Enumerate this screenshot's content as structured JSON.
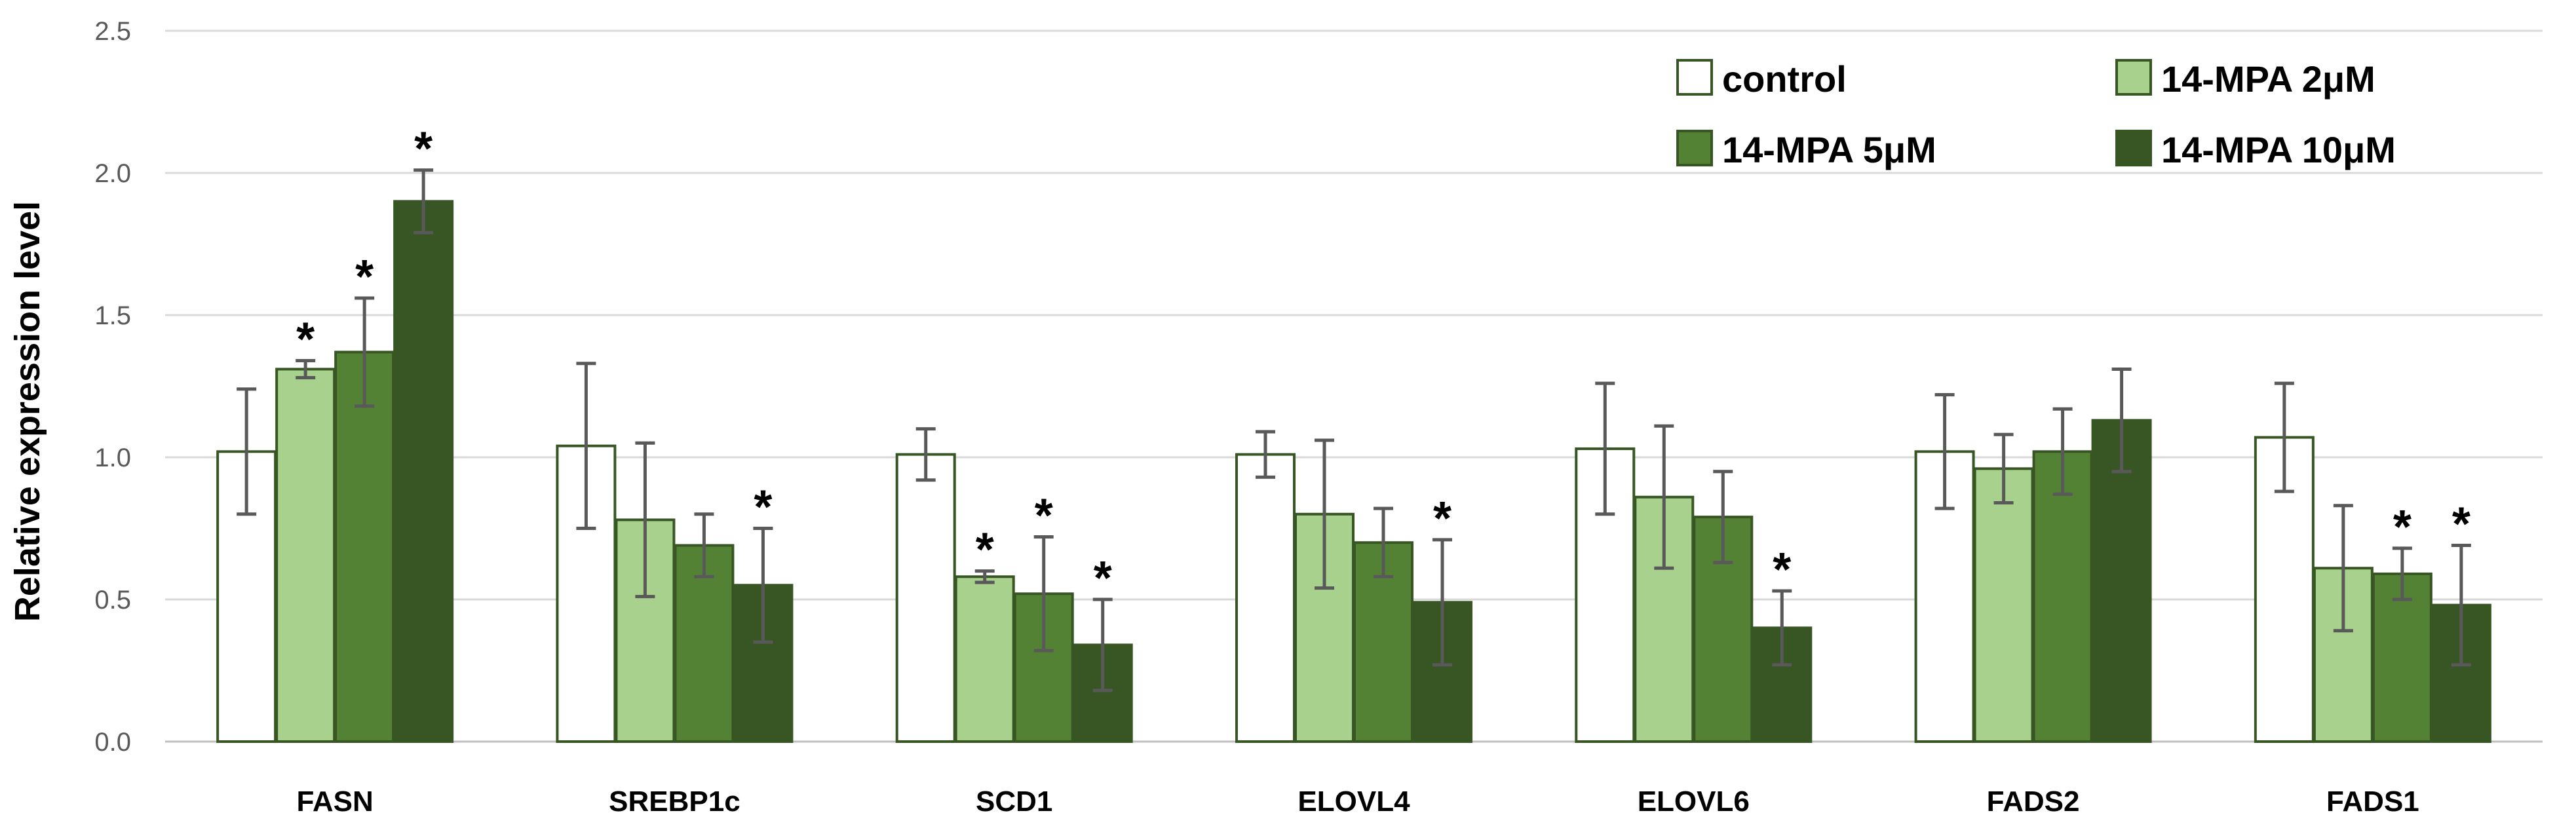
{
  "chart_data": {
    "type": "bar",
    "title": "",
    "xlabel": "",
    "ylabel": "Relative expression level",
    "ylim": [
      0,
      2.5
    ],
    "yticks": [
      "0.0",
      "0.5",
      "1.0",
      "1.5",
      "2.0",
      "2.5"
    ],
    "ytick_values": [
      0,
      0.5,
      1.0,
      1.5,
      2.0,
      2.5
    ],
    "grid": true,
    "legend_position": "top-right",
    "significance_marker": "*",
    "categories": [
      "FASN",
      "SREBP1c",
      "SCD1",
      "ELOVL4",
      "ELOVL6",
      "FADS2",
      "FADS1"
    ],
    "series": [
      {
        "name": "control",
        "color": "#ffffff",
        "values": [
          1.02,
          1.04,
          1.01,
          1.01,
          1.03,
          1.02,
          1.07
        ],
        "errors": [
          0.22,
          0.29,
          0.09,
          0.08,
          0.23,
          0.2,
          0.19
        ],
        "significant": [
          false,
          false,
          false,
          false,
          false,
          false,
          false
        ]
      },
      {
        "name": "14-MPA 2μM",
        "color": "#a9d18e",
        "values": [
          1.31,
          0.78,
          0.58,
          0.8,
          0.86,
          0.96,
          0.61
        ],
        "errors": [
          0.03,
          0.27,
          0.02,
          0.26,
          0.25,
          0.12,
          0.22
        ],
        "significant": [
          true,
          false,
          true,
          false,
          false,
          false,
          false
        ]
      },
      {
        "name": "14-MPA 5μM",
        "color": "#548235",
        "values": [
          1.37,
          0.69,
          0.52,
          0.7,
          0.79,
          1.02,
          0.59
        ],
        "errors": [
          0.19,
          0.11,
          0.2,
          0.12,
          0.16,
          0.15,
          0.09
        ],
        "significant": [
          true,
          false,
          true,
          false,
          false,
          false,
          true
        ]
      },
      {
        "name": "14-MPA 10μM",
        "color": "#375623",
        "values": [
          1.9,
          0.55,
          0.34,
          0.49,
          0.4,
          1.13,
          0.48
        ],
        "errors": [
          0.11,
          0.2,
          0.16,
          0.22,
          0.13,
          0.18,
          0.21
        ],
        "significant": [
          true,
          true,
          true,
          true,
          true,
          false,
          true
        ]
      }
    ]
  }
}
